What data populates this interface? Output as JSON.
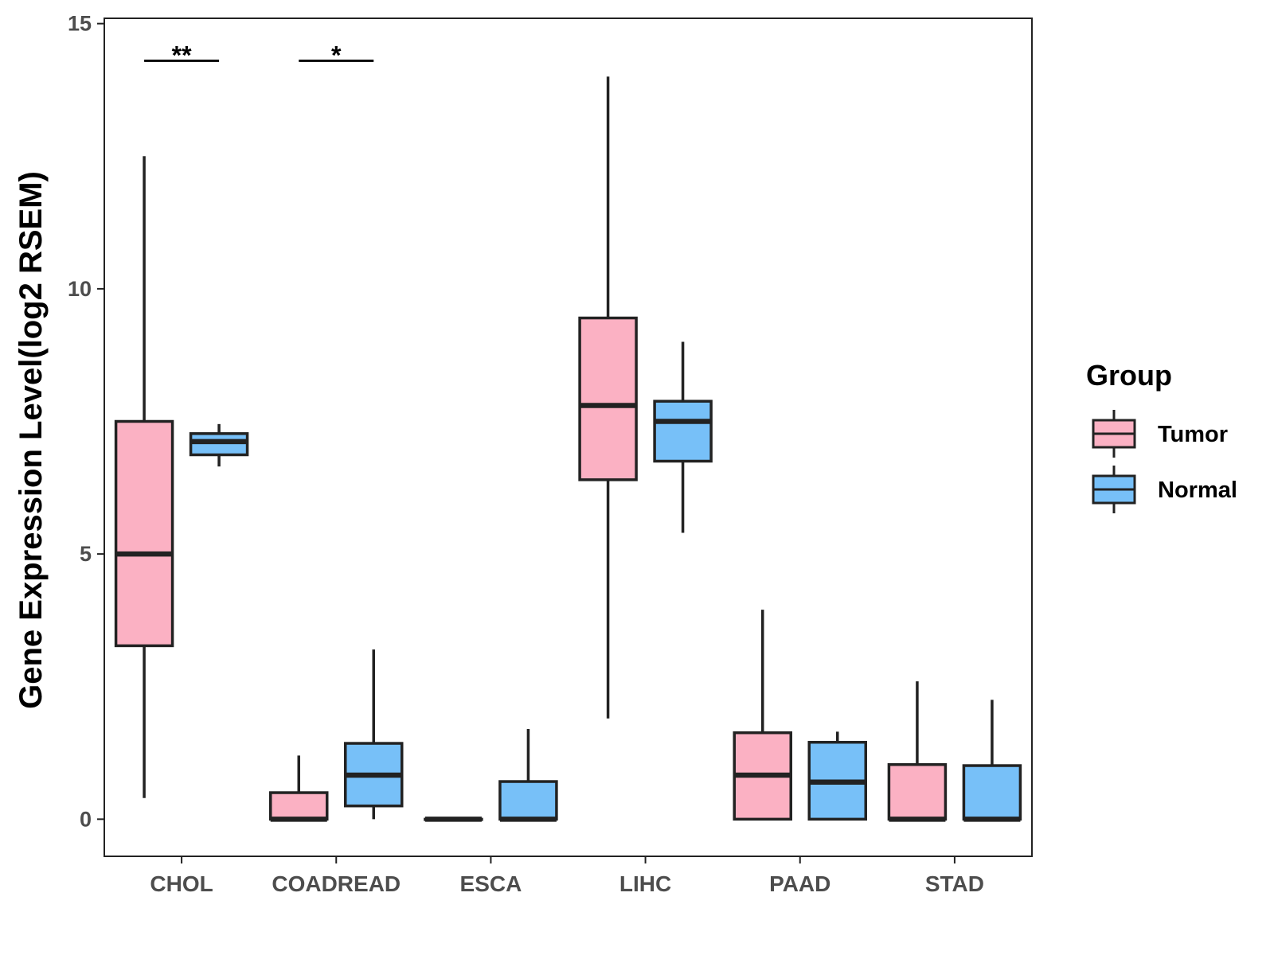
{
  "chart_data": {
    "type": "boxplot",
    "title": "",
    "xlabel": "",
    "ylabel": "Gene Expression Level(log2 RSEM)",
    "ylim": [
      -0.7,
      15.1
    ],
    "yticks": [
      0,
      5,
      10,
      15
    ],
    "categories": [
      "CHOL",
      "COADREAD",
      "ESCA",
      "LIHC",
      "PAAD",
      "STAD"
    ],
    "legend": {
      "title": "Group",
      "position": "right",
      "entries": [
        {
          "name": "Tumor",
          "color": "#fbb1c3"
        },
        {
          "name": "Normal",
          "color": "#77c0f8"
        }
      ]
    },
    "series": [
      {
        "name": "Tumor",
        "color": "#fbb1c3",
        "boxes": [
          {
            "category": "CHOL",
            "whisker_low": 0.4,
            "q1": 3.27,
            "median": 5.0,
            "q3": 7.5,
            "whisker_high": 12.5
          },
          {
            "category": "COADREAD",
            "whisker_low": 0.0,
            "q1": 0.0,
            "median": 0.0,
            "q3": 0.5,
            "whisker_high": 1.2
          },
          {
            "category": "ESCA",
            "whisker_low": 0.0,
            "q1": 0.0,
            "median": 0.0,
            "q3": 0.0,
            "whisker_high": 0.0
          },
          {
            "category": "LIHC",
            "whisker_low": 1.9,
            "q1": 6.4,
            "median": 7.8,
            "q3": 9.45,
            "whisker_high": 14.0
          },
          {
            "category": "PAAD",
            "whisker_low": 0.0,
            "q1": 0.0,
            "median": 0.83,
            "q3": 1.63,
            "whisker_high": 3.95
          },
          {
            "category": "STAD",
            "whisker_low": 0.0,
            "q1": 0.0,
            "median": 0.0,
            "q3": 1.03,
            "whisker_high": 2.6
          }
        ]
      },
      {
        "name": "Normal",
        "color": "#77c0f8",
        "boxes": [
          {
            "category": "CHOL",
            "whisker_low": 6.65,
            "q1": 6.87,
            "median": 7.12,
            "q3": 7.27,
            "whisker_high": 7.45
          },
          {
            "category": "COADREAD",
            "whisker_low": 0.0,
            "q1": 0.25,
            "median": 0.83,
            "q3": 1.43,
            "whisker_high": 3.2
          },
          {
            "category": "ESCA",
            "whisker_low": 0.0,
            "q1": 0.0,
            "median": 0.0,
            "q3": 0.71,
            "whisker_high": 1.7
          },
          {
            "category": "LIHC",
            "whisker_low": 5.4,
            "q1": 6.75,
            "median": 7.5,
            "q3": 7.88,
            "whisker_high": 9.0
          },
          {
            "category": "PAAD",
            "whisker_low": 0.0,
            "q1": 0.0,
            "median": 0.7,
            "q3": 1.45,
            "whisker_high": 1.65
          },
          {
            "category": "STAD",
            "whisker_low": 0.0,
            "q1": 0.0,
            "median": 0.0,
            "q3": 1.01,
            "whisker_high": 2.25
          }
        ]
      }
    ],
    "annotations": [
      {
        "category": "CHOL",
        "text": "**",
        "y": 14.3
      },
      {
        "category": "COADREAD",
        "text": "*",
        "y": 14.3
      }
    ]
  }
}
